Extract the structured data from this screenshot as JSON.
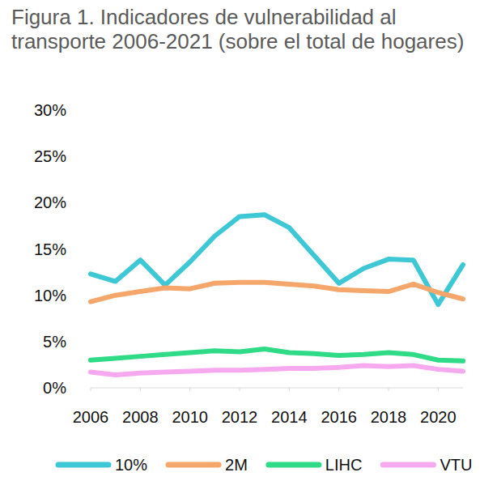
{
  "chart_data": {
    "type": "line",
    "title": "Figura 1. Indicadores de vulnerabilidad al transporte 2006-2021 (sobre el total de hogares)",
    "x": [
      2006,
      2007,
      2008,
      2009,
      2010,
      2011,
      2012,
      2013,
      2014,
      2015,
      2016,
      2017,
      2018,
      2019,
      2020,
      2021
    ],
    "xlim": [
      2006,
      2021
    ],
    "xticks": [
      2006,
      2008,
      2010,
      2012,
      2014,
      2016,
      2018,
      2020
    ],
    "ylim": [
      0,
      30
    ],
    "yticks": [
      {
        "value": 0,
        "label": "0%"
      },
      {
        "value": 5,
        "label": "5%"
      },
      {
        "value": 10,
        "label": "10%"
      },
      {
        "value": 15,
        "label": "15%"
      },
      {
        "value": 20,
        "label": "20%"
      },
      {
        "value": 25,
        "label": "25%"
      },
      {
        "value": 30,
        "label": "30%"
      }
    ],
    "grid": false,
    "legend": "bottom",
    "series": [
      {
        "name": "10%",
        "color": "#3ec8d6",
        "values": [
          12.3,
          11.5,
          13.8,
          11.1,
          13.6,
          16.4,
          18.5,
          18.7,
          17.3,
          14.3,
          11.3,
          12.9,
          13.9,
          13.8,
          9.0,
          13.3
        ]
      },
      {
        "name": "2M",
        "color": "#f5a66a",
        "values": [
          9.3,
          10.0,
          10.4,
          10.8,
          10.7,
          11.3,
          11.4,
          11.4,
          11.2,
          11.0,
          10.6,
          10.5,
          10.4,
          11.2,
          10.3,
          9.6
        ]
      },
      {
        "name": "LIHC",
        "color": "#2fdb87",
        "values": [
          3.0,
          3.2,
          3.4,
          3.6,
          3.8,
          4.0,
          3.9,
          4.2,
          3.8,
          3.7,
          3.5,
          3.6,
          3.8,
          3.6,
          3.0,
          2.9
        ]
      },
      {
        "name": "VTU",
        "color": "#f6a9ef",
        "values": [
          1.7,
          1.4,
          1.6,
          1.7,
          1.8,
          1.9,
          1.9,
          2.0,
          2.1,
          2.1,
          2.2,
          2.4,
          2.3,
          2.4,
          2.0,
          1.8
        ]
      }
    ]
  }
}
